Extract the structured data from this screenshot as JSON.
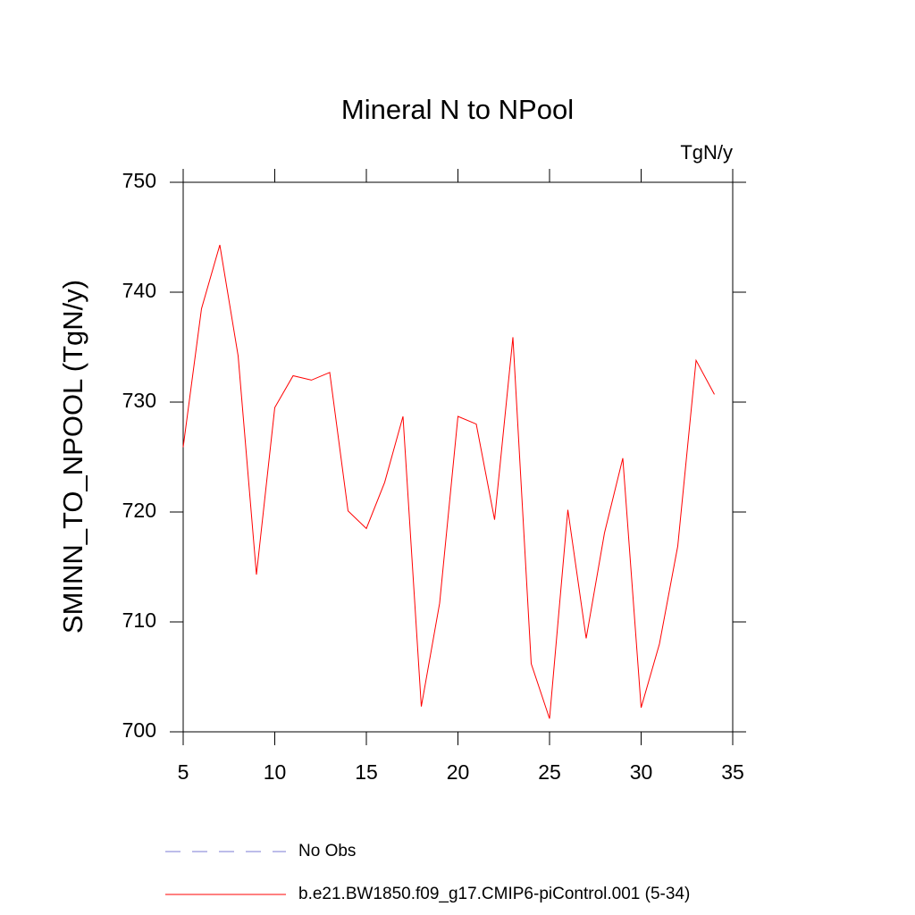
{
  "chart_data": {
    "type": "line",
    "title": "Mineral N to NPool",
    "units": "TgN/y",
    "y_label": "SMINN_TO_NPOOL  (TgN/y)",
    "x": [
      5,
      6,
      7,
      8,
      9,
      10,
      11,
      12,
      13,
      14,
      15,
      16,
      17,
      18,
      19,
      20,
      21,
      22,
      23,
      24,
      25,
      26,
      27,
      28,
      29,
      30,
      31,
      32,
      33,
      34
    ],
    "series": [
      {
        "name": "No Obs",
        "color": "#7b7bd6",
        "dashed": true,
        "values": [
          null,
          null,
          null,
          null,
          null,
          null,
          null,
          null,
          null,
          null,
          null,
          null,
          null,
          null,
          null,
          null,
          null,
          null,
          null,
          null,
          null,
          null,
          null,
          null,
          null,
          null,
          null,
          null,
          null,
          null
        ]
      },
      {
        "name": "b.e21.BW1850.f09_g17.CMIP6-piControl.001 (5-34)",
        "color": "#ff0000",
        "dashed": false,
        "values": [
          725.9,
          738.5,
          744.3,
          734.2,
          714.3,
          729.5,
          732.4,
          732.0,
          732.7,
          720.1,
          718.5,
          722.7,
          728.7,
          702.3,
          711.7,
          728.7,
          728.0,
          719.3,
          735.9,
          706.2,
          701.2,
          720.2,
          708.5,
          718.1,
          724.9,
          702.2,
          708.0,
          716.9,
          733.8,
          730.7
        ]
      }
    ],
    "xlim": [
      5,
      35
    ],
    "xticks": [
      5,
      10,
      15,
      20,
      25,
      30,
      35
    ],
    "ylim": [
      700,
      750
    ],
    "yticks": [
      700,
      710,
      720,
      730,
      740,
      750
    ]
  }
}
